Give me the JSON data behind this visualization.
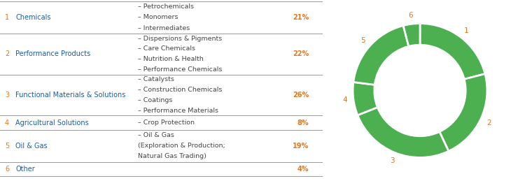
{
  "segments": [
    21,
    22,
    26,
    8,
    19,
    4
  ],
  "seg_labels": [
    "1",
    "2",
    "3",
    "4",
    "5",
    "6"
  ],
  "pie_color": "#4CAF50",
  "pie_edge_color": "#ffffff",
  "donut_width": 0.32,
  "color_number": "#E07820",
  "color_name": "#1A5CA8",
  "color_sub": "#444444",
  "color_pct": "#E07820",
  "line_color": "#999999",
  "rows": [
    {
      "number": "1",
      "name": "Chemicals",
      "sub": [
        "– Petrochemicals",
        "– Monomers",
        "– Intermediates"
      ],
      "pct": "21%",
      "sub_lines": 3
    },
    {
      "number": "2",
      "name": "Performance Products",
      "sub": [
        "– Dispersions & Pigments",
        "– Care Chemicals",
        "– Nutrition & Health",
        "– Performance Chemicals"
      ],
      "pct": "22%",
      "sub_lines": 4
    },
    {
      "number": "3",
      "name": "Functional Materials & Solutions",
      "sub": [
        "– Catalysts",
        "– Construction Chemicals",
        "– Coatings",
        "– Performance Materials"
      ],
      "pct": "26%",
      "sub_lines": 4
    },
    {
      "number": "4",
      "name": "Agricultural Solutions",
      "sub": [
        "– Crop Protection"
      ],
      "pct": "8%",
      "sub_lines": 1
    },
    {
      "number": "5",
      "name": "Oil & Gas",
      "sub": [
        "– Oil & Gas",
        "(Exploration & Production;",
        "Natural Gas Trading)"
      ],
      "pct": "19%",
      "sub_lines": 3
    },
    {
      "number": "6",
      "name": "Other",
      "sub": [],
      "pct": "4%",
      "sub_lines": 1
    }
  ],
  "figsize": [
    7.5,
    2.59
  ],
  "dpi": 100
}
